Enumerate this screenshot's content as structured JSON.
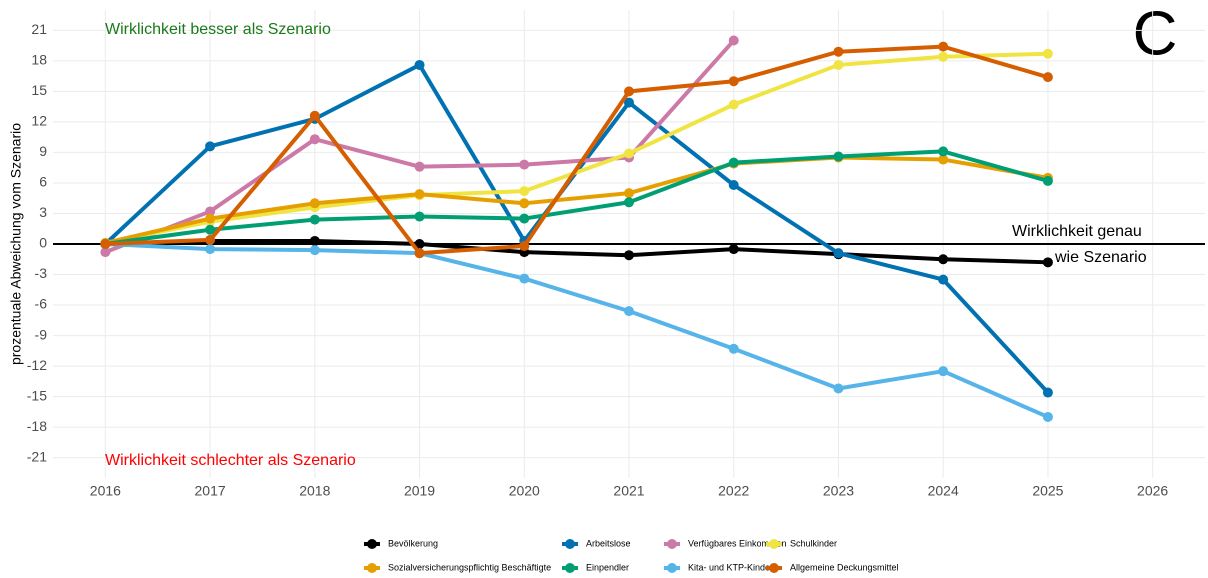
{
  "chart_data": {
    "type": "line",
    "panel_label": "C",
    "ylabel": "prozentuale Abweichung vom Szenario",
    "annotations": [
      {
        "text": "Wirklichkeit besser als Szenario",
        "color": "#1a7a1a"
      },
      {
        "text": "Wirklichkeit schlechter als Szenario",
        "color": "#ff0000"
      },
      {
        "text": "Wirklichkeit genau",
        "color": "#000000"
      },
      {
        "text": "wie Szenario",
        "color": "#000000"
      }
    ],
    "x": [
      2016,
      2017,
      2018,
      2019,
      2020,
      2021,
      2022,
      2023,
      2024,
      2025
    ],
    "xlim": [
      2015.5,
      2026.5
    ],
    "xticks": [
      2016,
      2017,
      2018,
      2019,
      2020,
      2021,
      2022,
      2023,
      2024,
      2025,
      2026
    ],
    "ylim": [
      -23,
      23
    ],
    "yticks": [
      -21,
      -18,
      -15,
      -12,
      -9,
      -6,
      -3,
      0,
      3,
      6,
      9,
      12,
      15,
      18,
      21
    ],
    "reference_line": 0,
    "grid": true,
    "legend": "bottom",
    "series": [
      {
        "name": "Bevölkerung",
        "color": "#000000",
        "values": [
          0,
          0.3,
          0.3,
          0,
          -0.8,
          -1.1,
          -0.5,
          -1.0,
          -1.5,
          -1.8
        ]
      },
      {
        "name": "Arbeitslose",
        "color": "#0072b2",
        "values": [
          0,
          9.6,
          12.3,
          17.6,
          0.3,
          13.9,
          5.8,
          -0.9,
          -3.5,
          -14.6
        ]
      },
      {
        "name": "Verfügbares Einkommen",
        "color": "#cc79a7",
        "values": [
          -0.8,
          3.2,
          10.3,
          7.6,
          7.8,
          8.5,
          20.0,
          null,
          null,
          null
        ]
      },
      {
        "name": "Schulkinder",
        "color": "#f0e442",
        "values": [
          0.1,
          2.2,
          3.6,
          4.8,
          5.2,
          8.9,
          13.7,
          17.6,
          18.4,
          18.7
        ]
      },
      {
        "name": "Sozialversicherungspflichtig Beschäftigte",
        "color": "#e69f00",
        "values": [
          0.1,
          2.5,
          4.0,
          4.9,
          4.0,
          5.0,
          7.9,
          8.5,
          8.3,
          6.5
        ]
      },
      {
        "name": "Einpendler",
        "color": "#009e73",
        "values": [
          0,
          1.4,
          2.4,
          2.7,
          2.5,
          4.1,
          8.0,
          8.6,
          9.1,
          6.2
        ]
      },
      {
        "name": "Kita- und KTP-Kinder",
        "color": "#56b4e9",
        "values": [
          0,
          -0.5,
          -0.6,
          -0.9,
          -3.4,
          -6.6,
          -10.3,
          -14.2,
          -12.5,
          -17.0
        ]
      },
      {
        "name": "Allgemeine Deckungsmittel",
        "color": "#d55e00",
        "values": [
          0,
          0.4,
          12.6,
          -0.9,
          -0.2,
          15.0,
          16.0,
          18.9,
          19.4,
          16.4
        ]
      }
    ]
  }
}
